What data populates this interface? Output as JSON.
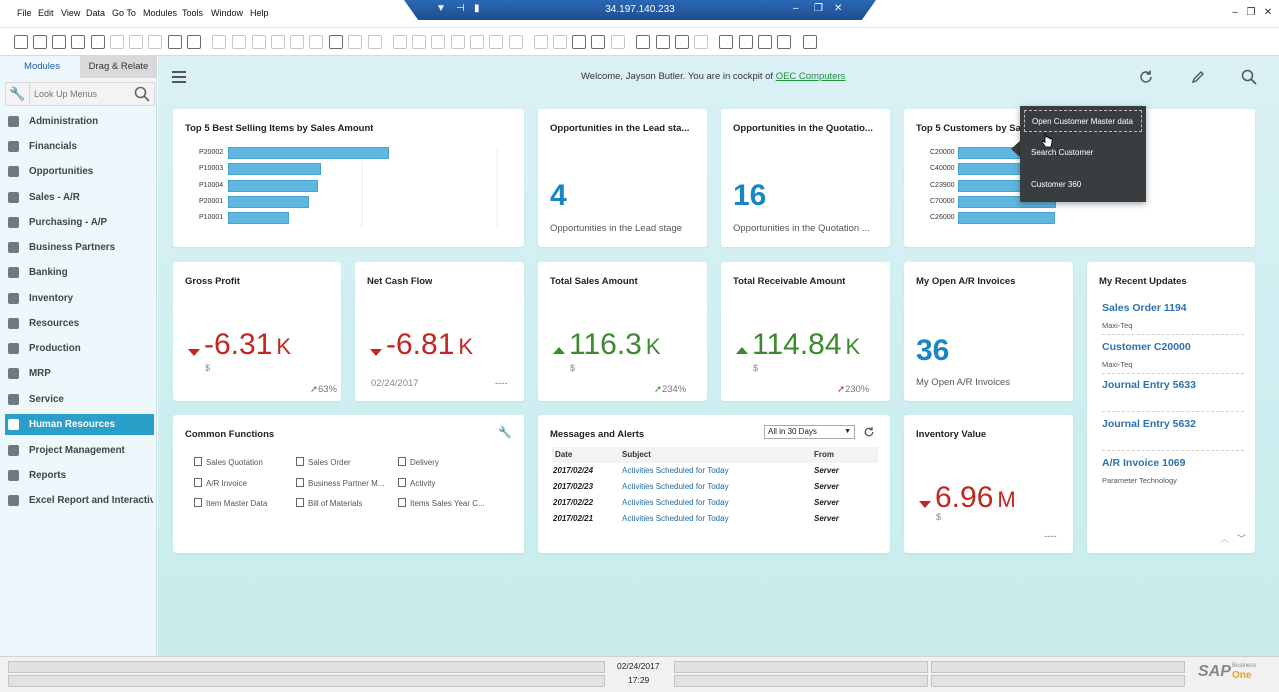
{
  "menubar": {
    "items": [
      "File",
      "Edit",
      "View",
      "Data",
      "Go To",
      "Modules",
      "Tools",
      "Window",
      "Help"
    ]
  },
  "remote_session": {
    "host": "34.197.140.233"
  },
  "sidebar": {
    "tabs": [
      "Modules",
      "Drag & Relate"
    ],
    "search_placeholder": "Look Up Menus",
    "items": [
      "Administration",
      "Financials",
      "Opportunities",
      "Sales - A/R",
      "Purchasing - A/P",
      "Business Partners",
      "Banking",
      "Inventory",
      "Resources",
      "Production",
      "MRP",
      "Service",
      "Human Resources",
      "Project Management",
      "Reports",
      "Excel Report and Interactive"
    ],
    "active_item": "Human Resources"
  },
  "header": {
    "welcome_prefix": "Welcome, Jayson Butler. You are in cockpit of",
    "company": "OEC Computers"
  },
  "cards": {
    "top5_items": {
      "title": "Top 5 Best Selling Items by Sales Amount",
      "labels": [
        "P20002",
        "P10003",
        "P10004",
        "P20001",
        "P10001"
      ],
      "values": [
        100,
        58,
        56,
        50,
        38
      ]
    },
    "opp_lead": {
      "title": "Opportunities in the Lead sta...",
      "value": "4",
      "caption": "Opportunities in the Lead stage"
    },
    "opp_quote": {
      "title": "Opportunities in the Quotatio...",
      "value": "16",
      "caption": "Opportunities in the Quotation ..."
    },
    "top5_customers": {
      "title": "Top 5 Customers by Sa",
      "labels": [
        "C20000",
        "C40000",
        "C23900",
        "C70000",
        "C26000"
      ],
      "values": [
        100,
        94,
        92,
        98,
        97
      ]
    },
    "gross_profit": {
      "title": "Gross Profit",
      "value": "-6.31",
      "suffix": "K",
      "unit": "$",
      "trend": "63%"
    },
    "net_cash": {
      "title": "Net Cash Flow",
      "value": "-6.81",
      "suffix": "K",
      "date": "02/24/2017",
      "trend": "----"
    },
    "total_sales": {
      "title": "Total Sales Amount",
      "value": "116.3",
      "suffix": "K",
      "unit": "$",
      "trend": "234%"
    },
    "total_receivable": {
      "title": "Total Receivable Amount",
      "value": "114.84",
      "suffix": "K",
      "unit": "$",
      "trend": "230%"
    },
    "open_ar": {
      "title": "My Open A/R Invoices",
      "value": "36",
      "caption": "My Open A/R Invoices"
    },
    "recent_updates": {
      "title": "My Recent Updates",
      "items": [
        {
          "title": "Sales Order 1194",
          "sub": "Maxi-Teq"
        },
        {
          "title": "Customer C20000",
          "sub": "Maxi-Teq"
        },
        {
          "title": "Journal Entry 5633",
          "sub": ""
        },
        {
          "title": "Journal Entry 5632",
          "sub": ""
        },
        {
          "title": "A/R Invoice 1069",
          "sub": "Parameter Technology"
        }
      ]
    },
    "common_functions": {
      "title": "Common Functions",
      "items": [
        "Sales Quotation",
        "Sales Order",
        "Delivery",
        "A/R Invoice",
        "Business Partner M...",
        "Activity",
        "Item Master Data",
        "Bill of Materials",
        "Items Sales Year C..."
      ]
    },
    "messages": {
      "title": "Messages and Alerts",
      "filter": "All in 30 Days",
      "headers": [
        "Date",
        "Subject",
        "From"
      ],
      "rows": [
        {
          "date": "2017/02/24",
          "subject": "Activities Scheduled for Today",
          "from": "Server"
        },
        {
          "date": "2017/02/23",
          "subject": "Activities Scheduled for Today",
          "from": "Server"
        },
        {
          "date": "2017/02/22",
          "subject": "Activities Scheduled for Today",
          "from": "Server"
        },
        {
          "date": "2017/02/21",
          "subject": "Activities Scheduled for Today",
          "from": "Server"
        }
      ]
    },
    "inventory": {
      "title": "Inventory Value",
      "value": "6.96",
      "suffix": "M",
      "unit": "$",
      "trend": "----"
    }
  },
  "popup": {
    "items": [
      "Open Customer Master data",
      "Search Customer",
      "Customer 360"
    ]
  },
  "statusbar": {
    "date": "02/24/2017",
    "time": "17:29"
  },
  "brand": {
    "logo": "SAP",
    "product_line1": "Business",
    "product_line2": "One"
  },
  "colors": {
    "accent": "#2a9fc9",
    "negative": "#c0271f",
    "positive": "#3c8a2e",
    "kpi_blue": "#1a84c7",
    "bar": "#5eb7e0"
  }
}
